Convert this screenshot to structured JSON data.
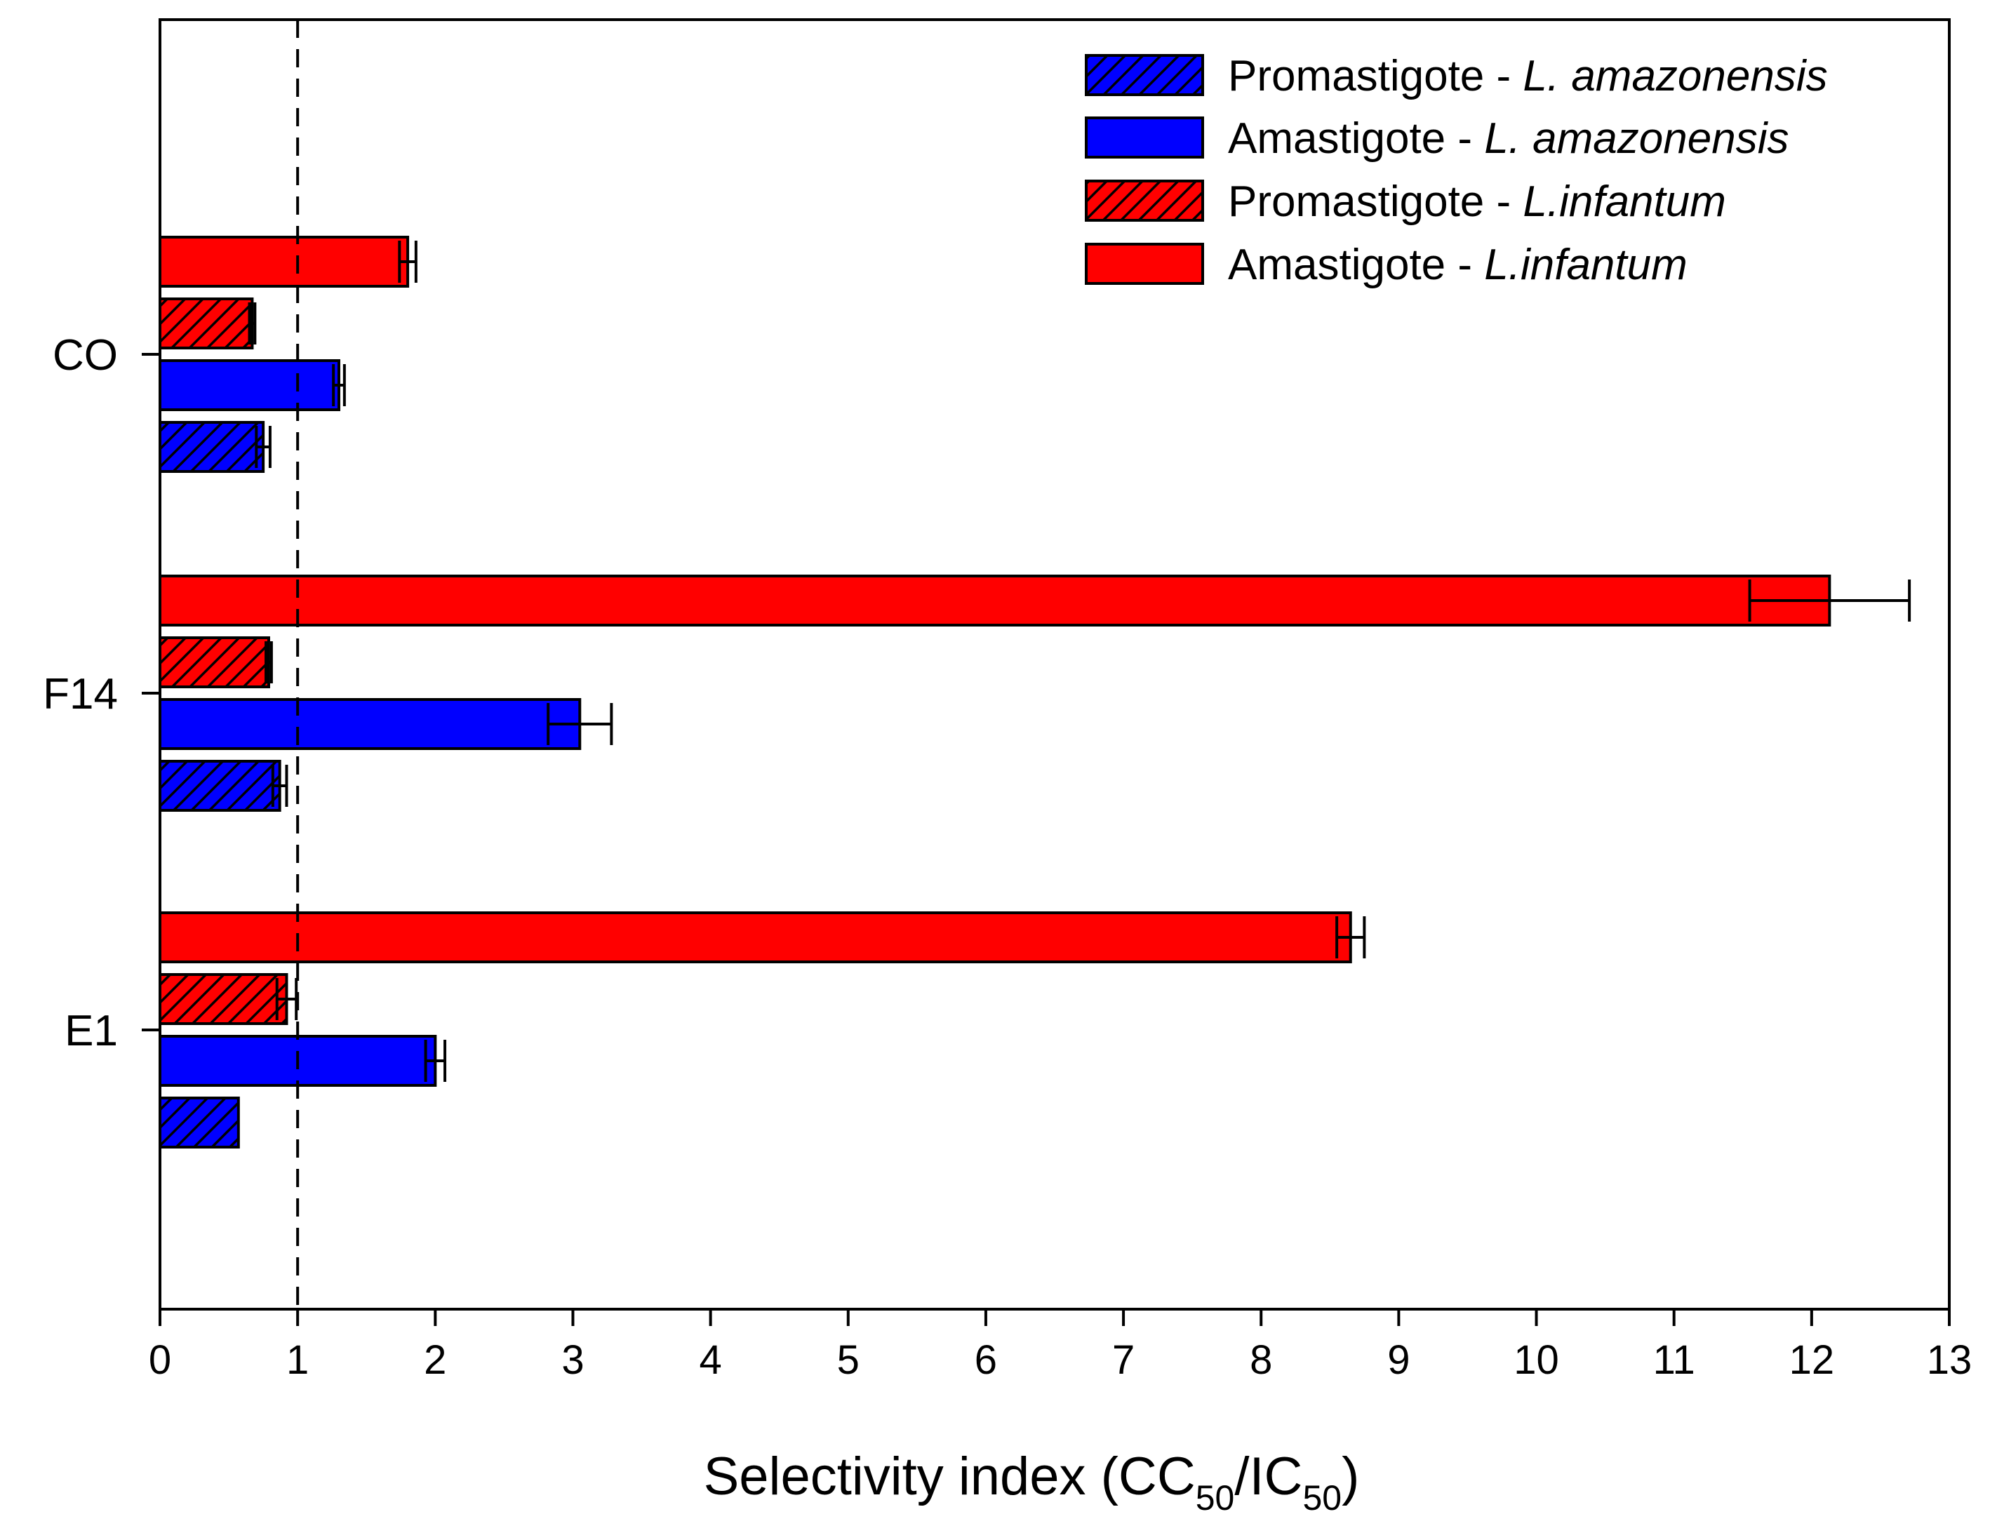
{
  "chart_data": {
    "type": "bar",
    "orientation": "horizontal",
    "categories": [
      "E1",
      "F14",
      "CO"
    ],
    "xlabel": {
      "prefix": "Selectivity index (CC",
      "sub1": "50",
      "middle": "/IC",
      "sub2": "50",
      "suffix": ")"
    },
    "xlim": [
      0,
      13
    ],
    "xticks": [
      0,
      1,
      2,
      3,
      4,
      5,
      6,
      7,
      8,
      9,
      10,
      11,
      12,
      13
    ],
    "reference_line": 1,
    "legend_position": "top-right",
    "series": [
      {
        "name": "Promastigote - L. amazonensis",
        "stage": "Promastigote - ",
        "species": "L. amazonensis",
        "color": "#0000ff",
        "hatched": true,
        "values": [
          0.57,
          0.87,
          0.75
        ],
        "errors": [
          0.0,
          0.05,
          0.05
        ]
      },
      {
        "name": "Amastigote - L. amazonensis",
        "stage": "Amastigote - ",
        "species": "L. amazonensis",
        "color": "#0000ff",
        "hatched": false,
        "values": [
          2.0,
          3.05,
          1.3
        ],
        "errors": [
          0.07,
          0.23,
          0.04
        ]
      },
      {
        "name": "Promastigote - L.infantum",
        "stage": "Promastigote - ",
        "species": "L.infantum",
        "color": "#ff0000",
        "hatched": true,
        "values": [
          0.92,
          0.79,
          0.67
        ],
        "errors": [
          0.07,
          0.02,
          0.02
        ]
      },
      {
        "name": "Amastigote - L.infantum",
        "stage": "Amastigote - ",
        "species": "L.infantum",
        "color": "#ff0000",
        "hatched": false,
        "values": [
          8.65,
          12.13,
          1.8
        ],
        "errors": [
          0.1,
          0.58,
          0.06
        ]
      }
    ]
  }
}
